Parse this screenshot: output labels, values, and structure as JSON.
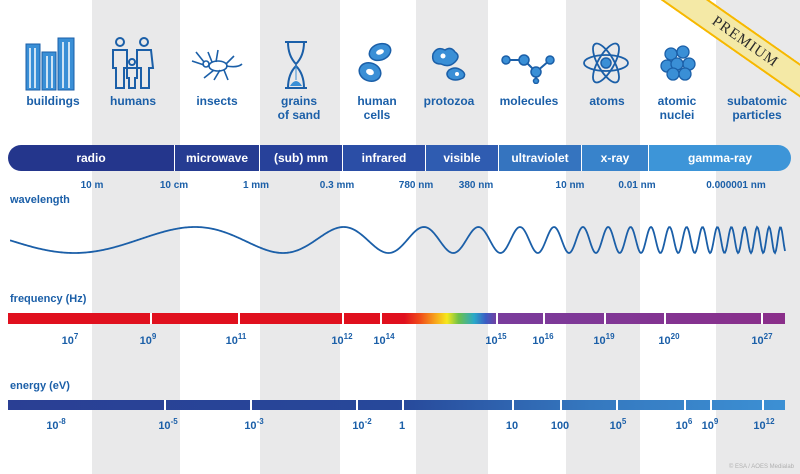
{
  "objects": [
    {
      "label": "buildings",
      "icon": "buildings-icon"
    },
    {
      "label": "humans",
      "icon": "humans-icon"
    },
    {
      "label": "insects",
      "icon": "insect-icon"
    },
    {
      "label": "grains\nof sand",
      "icon": "hourglass-icon"
    },
    {
      "label": "human\ncells",
      "icon": "cells-icon"
    },
    {
      "label": "protozoa",
      "icon": "protozoa-icon"
    },
    {
      "label": "molecules",
      "icon": "molecule-icon"
    },
    {
      "label": "atoms",
      "icon": "atom-icon"
    },
    {
      "label": "atomic\nnuclei",
      "icon": "nucleus-icon"
    },
    {
      "label": "subatomic\nparticles",
      "icon": "particles-icon"
    }
  ],
  "bands": [
    {
      "label": "radio",
      "color": "#24368c"
    },
    {
      "label": "microwave",
      "color": "#263c92"
    },
    {
      "label": "(sub) mm",
      "color": "#27419a"
    },
    {
      "label": "infrared",
      "color": "#2b4ea6"
    },
    {
      "label": "visible",
      "color": "#2f5cb1"
    },
    {
      "label": "ultraviolet",
      "color": "#3574bf"
    },
    {
      "label": "x-ray",
      "color": "#3883cb"
    },
    {
      "label": "gamma-ray",
      "color": "#3d95d8"
    }
  ],
  "wavelength": {
    "title": "wavelength",
    "ticks": [
      "10 m",
      "10 cm",
      "1 mm",
      "0.3 mm",
      "780 nm",
      "380 nm",
      "10 nm",
      "0.01 nm",
      "0.000001 nm"
    ]
  },
  "frequency": {
    "title": "frequency (Hz)",
    "labels": [
      {
        "base": "10",
        "exp": "7"
      },
      {
        "base": "10",
        "exp": "9"
      },
      {
        "base": "10",
        "exp": "11"
      },
      {
        "base": "10",
        "exp": "12"
      },
      {
        "base": "10",
        "exp": "14"
      },
      {
        "base": "10",
        "exp": "15"
      },
      {
        "base": "10",
        "exp": "16"
      },
      {
        "base": "10",
        "exp": "19"
      },
      {
        "base": "10",
        "exp": "20"
      },
      {
        "base": "10",
        "exp": "27"
      }
    ]
  },
  "energy": {
    "title": "energy (eV)",
    "labels": [
      {
        "base": "10",
        "exp": "-8"
      },
      {
        "base": "10",
        "exp": "-5"
      },
      {
        "base": "10",
        "exp": "-3"
      },
      {
        "base": "10",
        "exp": "-2"
      },
      {
        "base": "1",
        "exp": ""
      },
      {
        "base": "10",
        "exp": ""
      },
      {
        "base": "100",
        "exp": ""
      },
      {
        "base": "10",
        "exp": "5"
      },
      {
        "base": "10",
        "exp": "6"
      },
      {
        "base": "10",
        "exp": "9"
      },
      {
        "base": "10",
        "exp": "12"
      }
    ]
  },
  "ribbon": "PREMIUM",
  "credit": "© ESA / AOES Medialab"
}
